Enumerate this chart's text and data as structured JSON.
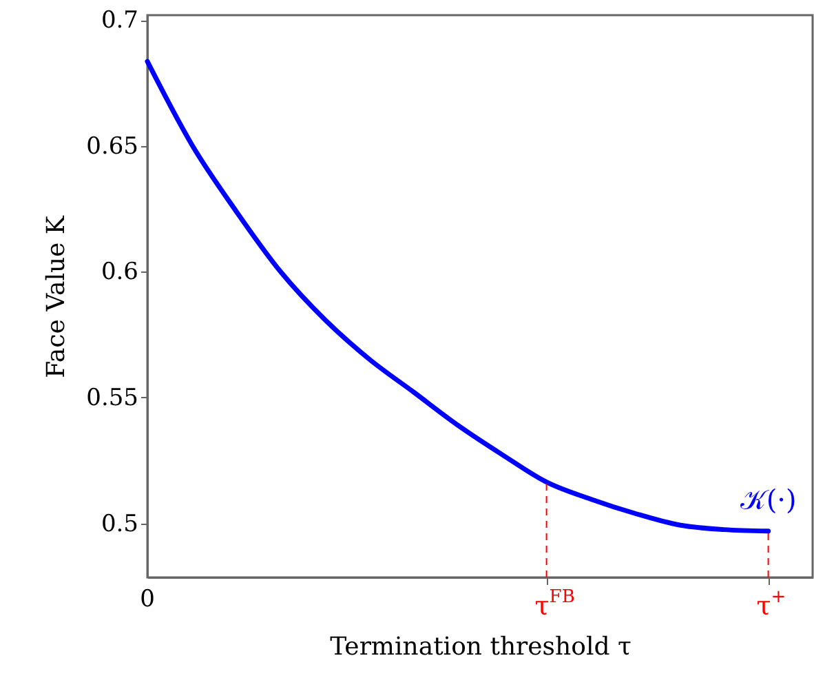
{
  "chart_data": {
    "type": "line",
    "xlabel": "Termination threshold τ",
    "ylabel": "Face Value K",
    "categories": [
      "0",
      null,
      null,
      null,
      null,
      null,
      null,
      null,
      null,
      "τ$^{FB}$",
      null,
      null,
      null,
      null,
      "τ$^{+}$",
      null
    ],
    "ylim": [
      0.4785,
      0.702
    ],
    "yticks": [
      0.5,
      0.55,
      0.6,
      0.65,
      0.7
    ],
    "grid": false,
    "marker": "none",
    "line_style": "solid",
    "series": [
      {
        "name": "𝒦(·)",
        "color": "#0000ff",
        "values": [
          0.6836,
          0.6506,
          0.6241,
          0.6001,
          0.581,
          0.5653,
          0.5522,
          0.539,
          0.5273,
          0.5164,
          0.5096,
          0.5039,
          0.4993,
          0.4975,
          0.4969,
          null
        ]
      }
    ],
    "ref_lines": [
      {
        "axis": "x",
        "value": "τ$^{FB}$",
        "color": "#ff0000",
        "line_style": "dashed"
      },
      {
        "axis": "x",
        "value": "τ$^{+}$",
        "color": "#ff0000",
        "line_style": "dashed"
      }
    ]
  }
}
